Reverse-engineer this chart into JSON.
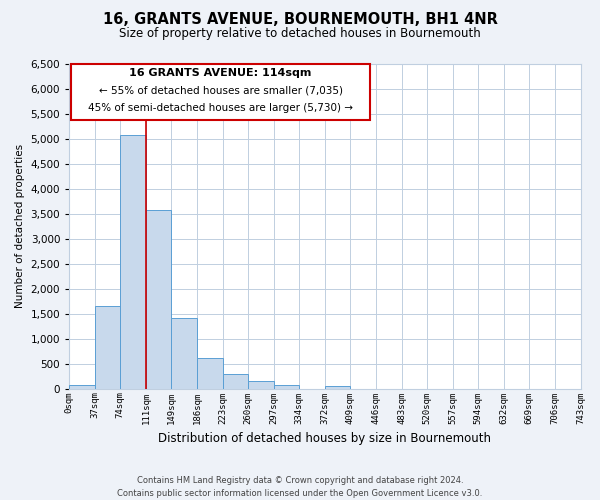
{
  "title": "16, GRANTS AVENUE, BOURNEMOUTH, BH1 4NR",
  "subtitle": "Size of property relative to detached houses in Bournemouth",
  "xlabel": "Distribution of detached houses by size in Bournemouth",
  "ylabel": "Number of detached properties",
  "bin_edges": [
    0,
    37,
    74,
    111,
    148,
    185,
    222,
    259,
    296,
    333,
    370,
    407,
    444,
    481,
    518,
    555,
    592,
    629,
    666,
    703,
    740
  ],
  "bin_labels": [
    "0sqm",
    "37sqm",
    "74sqm",
    "111sqm",
    "149sqm",
    "186sqm",
    "223sqm",
    "260sqm",
    "297sqm",
    "334sqm",
    "372sqm",
    "409sqm",
    "446sqm",
    "483sqm",
    "520sqm",
    "557sqm",
    "594sqm",
    "632sqm",
    "669sqm",
    "706sqm",
    "743sqm"
  ],
  "counts": [
    75,
    1650,
    5075,
    3580,
    1420,
    610,
    300,
    155,
    75,
    0,
    50,
    0,
    0,
    0,
    0,
    0,
    0,
    0,
    0,
    0
  ],
  "bar_color": "#c8d9ec",
  "bar_edge_color": "#5a9fd4",
  "vline_x": 111,
  "vline_color": "#cc0000",
  "ylim": [
    0,
    6500
  ],
  "yticks": [
    0,
    500,
    1000,
    1500,
    2000,
    2500,
    3000,
    3500,
    4000,
    4500,
    5000,
    5500,
    6000,
    6500
  ],
  "annotation_title": "16 GRANTS AVENUE: 114sqm",
  "annotation_line1": "← 55% of detached houses are smaller (7,035)",
  "annotation_line2": "45% of semi-detached houses are larger (5,730) →",
  "annotation_box_color": "#cc0000",
  "footer_line1": "Contains HM Land Registry data © Crown copyright and database right 2024.",
  "footer_line2": "Contains public sector information licensed under the Open Government Licence v3.0.",
  "bg_color": "#eef2f8",
  "plot_bg_color": "#ffffff",
  "grid_color": "#c0cfe0"
}
